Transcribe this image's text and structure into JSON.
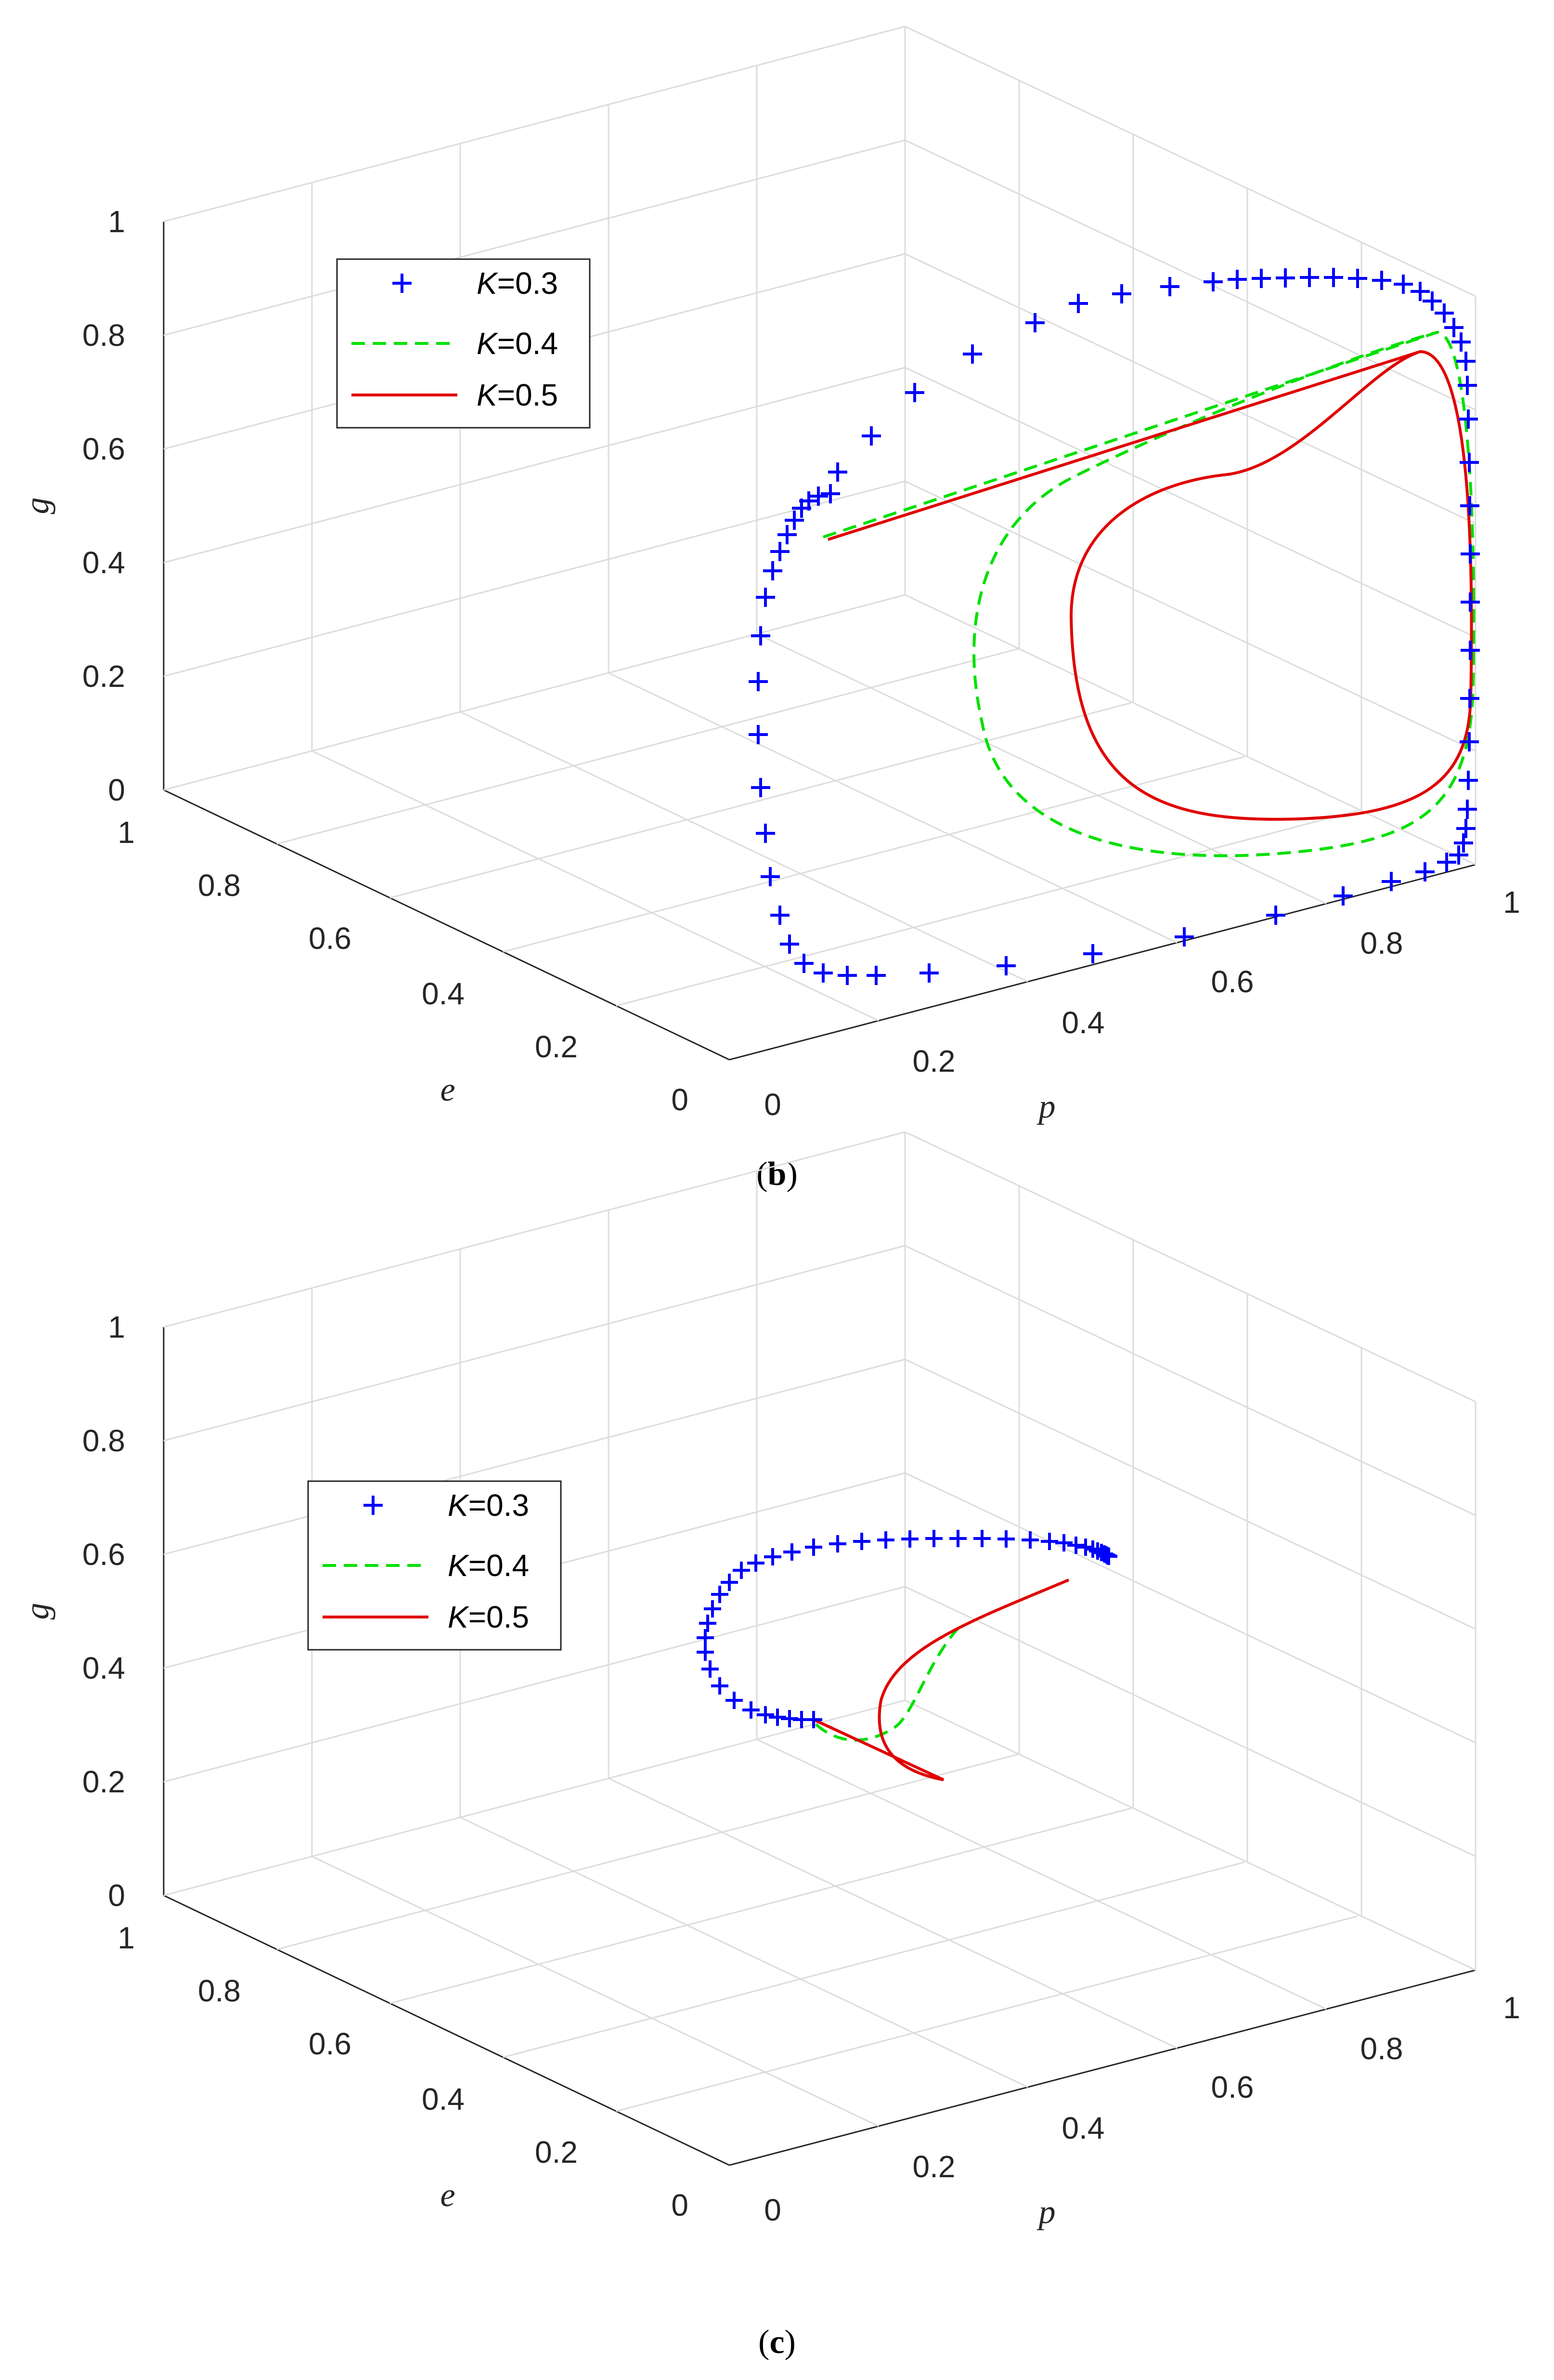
{
  "chart_data": [
    {
      "panel": "b",
      "type": "line",
      "caption": "b",
      "xlabel": "p",
      "ylabel": "e",
      "zlabel": "g",
      "xlim": [
        0,
        1
      ],
      "ylim": [
        0,
        1
      ],
      "zlim": [
        0,
        1
      ],
      "x_ticks": [
        "0",
        "0.2",
        "0.4",
        "0.6",
        "0.8",
        "1"
      ],
      "y_ticks": [
        "0",
        "0.2",
        "0.4",
        "0.6",
        "0.8",
        "1"
      ],
      "z_ticks": [
        "0",
        "0.2",
        "0.4",
        "0.6",
        "0.8",
        "1"
      ],
      "grid": true,
      "legend_position": "top-left",
      "series": [
        {
          "k_symbol": "K",
          "k_value": "=0.3",
          "color": "#0000ff",
          "style": "plus-markers",
          "trajectory": "large cycle, markers spaced along the path"
        },
        {
          "k_symbol": "K",
          "k_value": "=0.4",
          "color": "#00e000",
          "style": "dashed",
          "trajectory": "medium cycle"
        },
        {
          "k_symbol": "K",
          "k_value": "=0.5",
          "color": "#e00000",
          "style": "solid",
          "trajectory": "small cycle"
        }
      ]
    },
    {
      "panel": "c",
      "type": "line",
      "caption": "c",
      "xlabel": "p",
      "ylabel": "e",
      "zlabel": "g",
      "xlim": [
        0,
        1
      ],
      "ylim": [
        0,
        1
      ],
      "zlim": [
        0,
        1
      ],
      "x_ticks": [
        "0",
        "0.2",
        "0.4",
        "0.6",
        "0.8",
        "1"
      ],
      "y_ticks": [
        "0",
        "0.2",
        "0.4",
        "0.6",
        "0.8",
        "1"
      ],
      "z_ticks": [
        "0",
        "0.2",
        "0.4",
        "0.6",
        "0.8",
        "1"
      ],
      "grid": true,
      "legend_position": "top-left",
      "series": [
        {
          "k_symbol": "K",
          "k_value": "=0.3",
          "color": "#0000ff",
          "style": "plus-markers",
          "trajectory": "spiral arc converging to a point"
        },
        {
          "k_symbol": "K",
          "k_value": "=0.4",
          "color": "#00e000",
          "style": "dashed",
          "trajectory": "short arc"
        },
        {
          "k_symbol": "K",
          "k_value": "=0.5",
          "color": "#e00000",
          "style": "solid",
          "trajectory": "short arc"
        }
      ]
    }
  ]
}
